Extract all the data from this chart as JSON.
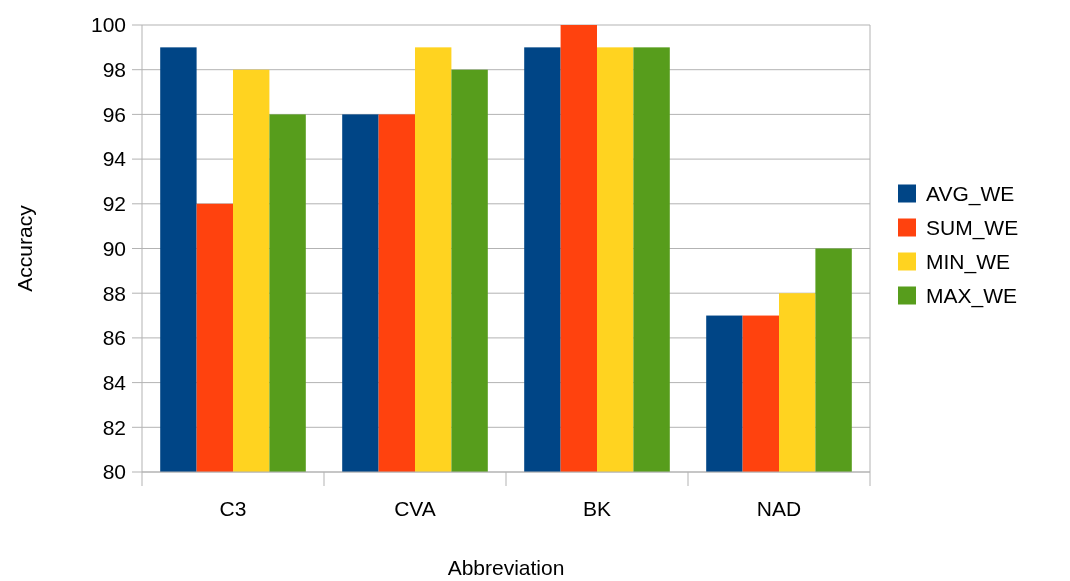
{
  "chart_data": {
    "type": "bar",
    "xlabel": "Abbreviation",
    "ylabel": "Accuracy",
    "categories": [
      "C3",
      "CVA",
      "BK",
      "NAD"
    ],
    "series": [
      {
        "name": "AVG_WE",
        "color": "#004586",
        "values": [
          99,
          96,
          99,
          87
        ]
      },
      {
        "name": "SUM_WE",
        "color": "#ff420e",
        "values": [
          92,
          96,
          100,
          87
        ]
      },
      {
        "name": "MIN_WE",
        "color": "#ffd320",
        "values": [
          98,
          99,
          99,
          88
        ]
      },
      {
        "name": "MAX_WE",
        "color": "#579d1c",
        "values": [
          96,
          98,
          99,
          90
        ]
      }
    ],
    "ylim": [
      80,
      100
    ],
    "yticks": [
      80,
      82,
      84,
      86,
      88,
      90,
      92,
      94,
      96,
      98,
      100
    ],
    "grid": "y",
    "legend": "right"
  }
}
